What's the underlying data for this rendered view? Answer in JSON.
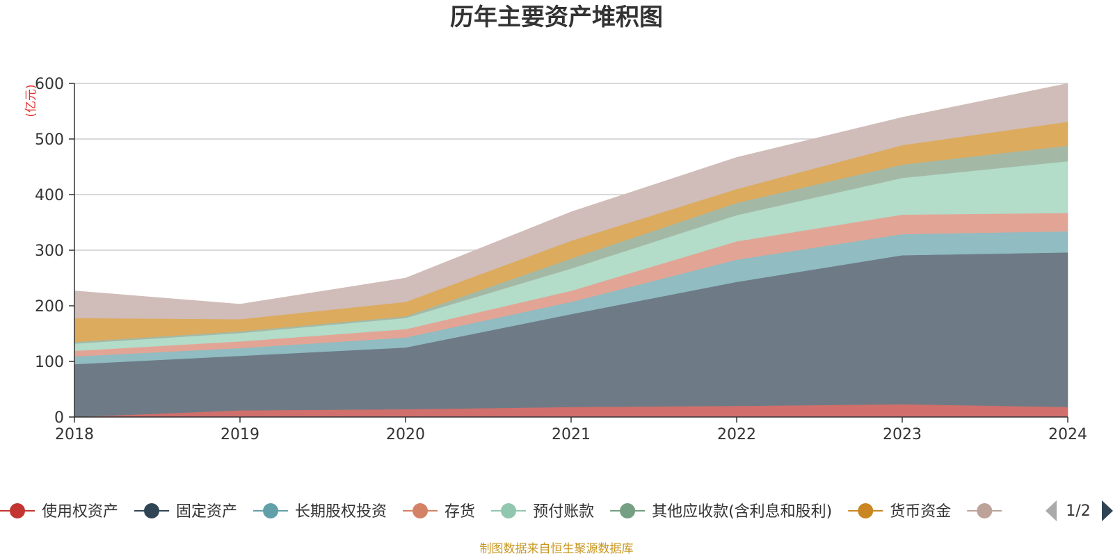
{
  "chart_data": {
    "type": "area",
    "stacked": true,
    "title": "历年主要资产堆积图",
    "unit_label": "(亿元)",
    "x": [
      "2018",
      "2019",
      "2020",
      "2021",
      "2022",
      "2023",
      "2024"
    ],
    "ylim": [
      0,
      600
    ],
    "y_ticks": [
      0,
      100,
      200,
      300,
      400,
      500,
      600
    ],
    "grid": true,
    "series": [
      {
        "name": "使用权资产",
        "color": "#d06f6b",
        "marker_color": "#c23531",
        "values": [
          0,
          12,
          14,
          18,
          20,
          23,
          18
        ]
      },
      {
        "name": "固定资产",
        "color": "#6e7b86",
        "marker_color": "#2f4554",
        "values": [
          95,
          98,
          111,
          167,
          223,
          268,
          278
        ]
      },
      {
        "name": "长期股权投资",
        "color": "#90bcc2",
        "marker_color": "#61a0a8",
        "values": [
          14,
          14,
          18,
          22,
          40,
          38,
          38
        ]
      },
      {
        "name": "存货",
        "color": "#e2a595",
        "marker_color": "#d48265",
        "values": [
          10,
          12,
          15,
          20,
          33,
          35,
          33
        ]
      },
      {
        "name": "预付账款",
        "color": "#b3dcc9",
        "marker_color": "#91c7ae",
        "values": [
          13,
          15,
          20,
          40,
          47,
          66,
          93
        ]
      },
      {
        "name": "其他应收款(含利息和股利)",
        "color": "#a3b9a6",
        "marker_color": "#749f83",
        "values": [
          3,
          3,
          3,
          18,
          22,
          24,
          28
        ]
      },
      {
        "name": "货币资金",
        "color": "#dcab5e",
        "marker_color": "#ca8622",
        "values": [
          43,
          22,
          26,
          32,
          25,
          35,
          43
        ]
      },
      {
        "name": "",
        "color": "#d0bcb8",
        "marker_color": "#bda29a",
        "values": [
          49,
          27,
          43,
          52,
          57,
          50,
          69
        ]
      }
    ],
    "legend_placement": "bottom",
    "pager_text": "1/2"
  },
  "footer": {
    "source": "制图数据来自恒生聚源数据库"
  },
  "colors": {
    "source_text": "#c8971f",
    "unit_text": "#e0302a",
    "axis": "#333333",
    "grid": "#cccccc",
    "pager_active": "#2f4554",
    "pager_inactive": "#aaaaaa"
  }
}
